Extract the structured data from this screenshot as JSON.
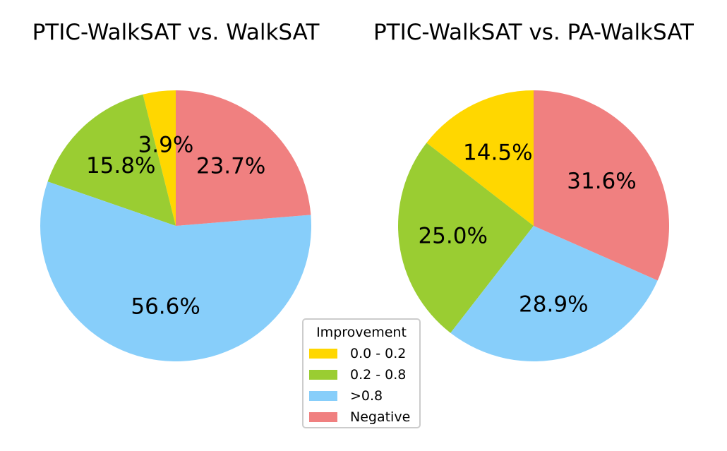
{
  "chart_data": [
    {
      "type": "pie",
      "title": "PTIC-WalkSAT vs. WalkSAT",
      "categories": [
        "0.0 - 0.2",
        "0.2 - 0.8",
        ">0.8",
        "Negative"
      ],
      "values": [
        3.9,
        15.8,
        56.6,
        23.7
      ],
      "labels": [
        "3.9%",
        "15.8%",
        "56.6%",
        "23.7%"
      ]
    },
    {
      "type": "pie",
      "title": "PTIC-WalkSAT vs. PA-WalkSAT",
      "categories": [
        "0.0 - 0.2",
        "0.2 - 0.8",
        ">0.8",
        "Negative"
      ],
      "values": [
        14.5,
        25.0,
        28.9,
        31.6
      ],
      "labels": [
        "14.5%",
        "25.0%",
        "28.9%",
        "31.6%"
      ]
    }
  ],
  "legend": {
    "title": "Improvement",
    "placement": "bottom-center",
    "items": [
      {
        "label": "0.0 - 0.2",
        "color": "#ffd700"
      },
      {
        "label": "0.2 - 0.8",
        "color": "#9acd32"
      },
      {
        "label": ">0.8",
        "color": "#87cefa"
      },
      {
        "label": "Negative",
        "color": "#f08080"
      }
    ]
  },
  "colors": {
    "0.0 - 0.2": "#ffd700",
    "0.2 - 0.8": "#9acd32",
    ">0.8": "#87cefa",
    "Negative": "#f08080"
  }
}
